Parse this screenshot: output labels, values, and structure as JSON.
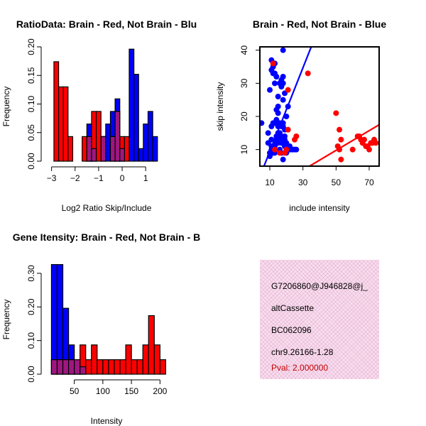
{
  "chart_data": [
    {
      "type": "bar",
      "title": "RatioData: Brain - Red, Not Brain - Blu",
      "xlabel": "Log2 Ratio Skip/Include",
      "ylabel": "Frequency",
      "xlim": [
        -3.2,
        1.9
      ],
      "ylim": [
        0,
        0.2
      ],
      "x_ticks": [
        -3,
        -2,
        -1,
        0,
        1
      ],
      "x_tick_labels": [
        "−3",
        "−2",
        "−1",
        "0",
        "1"
      ],
      "y_ticks": [
        0.0,
        0.05,
        0.1,
        0.15,
        0.2
      ],
      "y_tick_labels": [
        "0.00",
        "0.05",
        "0.10",
        "0.15",
        "0.20"
      ],
      "bin_width": 0.2,
      "series": [
        {
          "name": "Brain",
          "color": "#ff0000",
          "bins": [
            {
              "x0": -2.9,
              "value": 0.174
            },
            {
              "x0": -2.7,
              "value": 0.13
            },
            {
              "x0": -2.5,
              "value": 0.13
            },
            {
              "x0": -2.3,
              "value": 0.043
            },
            {
              "x0": -1.7,
              "value": 0.043
            },
            {
              "x0": -1.5,
              "value": 0.043
            },
            {
              "x0": -1.3,
              "value": 0.087
            },
            {
              "x0": -1.1,
              "value": 0.087
            },
            {
              "x0": -0.9,
              "value": 0.043
            },
            {
              "x0": -0.5,
              "value": 0.043
            },
            {
              "x0": -0.3,
              "value": 0.087
            },
            {
              "x0": -0.1,
              "value": 0.043
            },
            {
              "x0": 0.1,
              "value": 0.043
            }
          ]
        },
        {
          "name": "Not Brain",
          "color": "#0000ff",
          "bins": [
            {
              "x0": -1.5,
              "value": 0.065
            },
            {
              "x0": -1.3,
              "value": 0.022
            },
            {
              "x0": -0.9,
              "value": 0.043
            },
            {
              "x0": -0.7,
              "value": 0.065
            },
            {
              "x0": -0.5,
              "value": 0.087
            },
            {
              "x0": -0.3,
              "value": 0.109
            },
            {
              "x0": -0.1,
              "value": 0.022
            },
            {
              "x0": 0.3,
              "value": 0.196
            },
            {
              "x0": 0.5,
              "value": 0.152
            },
            {
              "x0": 0.7,
              "value": 0.022
            },
            {
              "x0": 0.9,
              "value": 0.065
            },
            {
              "x0": 1.1,
              "value": 0.087
            },
            {
              "x0": 1.3,
              "value": 0.043
            }
          ]
        }
      ]
    },
    {
      "type": "scatter",
      "title": "Brain - Red, Not Brain - Blue",
      "xlabel": "include intensity",
      "ylabel": "skip intensity",
      "xlim": [
        4,
        76
      ],
      "ylim": [
        5,
        41
      ],
      "x_ticks": [
        10,
        30,
        50,
        70
      ],
      "y_ticks": [
        10,
        20,
        30,
        40
      ],
      "series": [
        {
          "name": "Not Brain",
          "color": "#0000ff",
          "points": [
            [
              5,
              18
            ],
            [
              9,
              15
            ],
            [
              9,
              12
            ],
            [
              10,
              8
            ],
            [
              10,
              9
            ],
            [
              11,
              13
            ],
            [
              11,
              11
            ],
            [
              12,
              9
            ],
            [
              12,
              10
            ],
            [
              13,
              9
            ],
            [
              13,
              11
            ],
            [
              11,
              10
            ],
            [
              14,
              12
            ],
            [
              14,
              14
            ],
            [
              15,
              14
            ],
            [
              15,
              15
            ],
            [
              16,
              14
            ],
            [
              16,
              15
            ],
            [
              17,
              14
            ],
            [
              17,
              12
            ],
            [
              15,
              12
            ],
            [
              16,
              13
            ],
            [
              14,
              13
            ],
            [
              11,
              17
            ],
            [
              12,
              18
            ],
            [
              13,
              18
            ],
            [
              14,
              19
            ],
            [
              15,
              17
            ],
            [
              16,
              18
            ],
            [
              17,
              17
            ],
            [
              18,
              17
            ],
            [
              19,
              14
            ],
            [
              18,
              18
            ],
            [
              19,
              16
            ],
            [
              20,
              20
            ],
            [
              15,
              21
            ],
            [
              15,
              23
            ],
            [
              14,
              22
            ],
            [
              15,
              26
            ],
            [
              16,
              30
            ],
            [
              17,
              31
            ],
            [
              18,
              32
            ],
            [
              19,
              27
            ],
            [
              18,
              25
            ],
            [
              21,
              23
            ],
            [
              18,
              30
            ],
            [
              17,
              29
            ],
            [
              10,
              28
            ],
            [
              12,
              33
            ],
            [
              11,
              34
            ],
            [
              12,
              35
            ],
            [
              13,
              33
            ],
            [
              14,
              32
            ],
            [
              13,
              36
            ],
            [
              11,
              37
            ],
            [
              18,
              40
            ],
            [
              22,
              10
            ],
            [
              23,
              10
            ],
            [
              24,
              10
            ],
            [
              25,
              10
            ],
            [
              26,
              10
            ],
            [
              20,
              9
            ],
            [
              21,
              10
            ],
            [
              19,
              11
            ],
            [
              20,
              12
            ],
            [
              17,
              9
            ],
            [
              18,
              7
            ],
            [
              16,
              10
            ],
            [
              22,
              11
            ],
            [
              19,
              13
            ],
            [
              13,
              30
            ]
          ]
        },
        {
          "name": "Brain",
          "color": "#ff0000",
          "points": [
            [
              12,
              36
            ],
            [
              19,
              9
            ],
            [
              20,
              10
            ],
            [
              21,
              28
            ],
            [
              21,
              16
            ],
            [
              25,
              13
            ],
            [
              26,
              14
            ],
            [
              33,
              33
            ],
            [
              50,
              21
            ],
            [
              51,
              11
            ],
            [
              52,
              16
            ],
            [
              53,
              13
            ],
            [
              52,
              10
            ],
            [
              53,
              7
            ],
            [
              60,
              10
            ],
            [
              63,
              14
            ],
            [
              64,
              14
            ],
            [
              65,
              13
            ],
            [
              66,
              12
            ],
            [
              67,
              13
            ],
            [
              68,
              11
            ],
            [
              69,
              11
            ],
            [
              70,
              10
            ],
            [
              71,
              12
            ],
            [
              72,
              12
            ],
            [
              73,
              13
            ],
            [
              74,
              12
            ],
            [
              13,
              10
            ],
            [
              16,
              9
            ]
          ]
        }
      ],
      "regression_lines": [
        {
          "name": "Not Brain fit",
          "color": "#0000ff",
          "from": [
            6.5,
            5
          ],
          "to": [
            35,
            41
          ]
        },
        {
          "name": "Brain fit",
          "color": "#ff0000",
          "from": [
            34,
            5
          ],
          "to": [
            76,
            17.5
          ]
        }
      ]
    },
    {
      "type": "bar",
      "title": "Gene Itensity: Brain - Red, Not Brain - B",
      "xlabel": "Intensity",
      "ylabel": "Frequency",
      "xlim": [
        2,
        212
      ],
      "ylim": [
        0,
        0.34
      ],
      "x_ticks": [
        50,
        100,
        150,
        200
      ],
      "y_ticks": [
        0.0,
        0.1,
        0.2,
        0.3
      ],
      "y_tick_labels": [
        "0.00",
        "0.10",
        "0.20",
        "0.30"
      ],
      "bin_width": 10,
      "series": [
        {
          "name": "Brain",
          "color": "#ff0000",
          "bins": [
            {
              "x0": 10,
              "value": 0.043
            },
            {
              "x0": 20,
              "value": 0.043
            },
            {
              "x0": 30,
              "value": 0.043
            },
            {
              "x0": 40,
              "value": 0.043
            },
            {
              "x0": 50,
              "value": 0.043
            },
            {
              "x0": 60,
              "value": 0.087
            },
            {
              "x0": 70,
              "value": 0.043
            },
            {
              "x0": 80,
              "value": 0.087
            },
            {
              "x0": 90,
              "value": 0.043
            },
            {
              "x0": 100,
              "value": 0.043
            },
            {
              "x0": 110,
              "value": 0.043
            },
            {
              "x0": 120,
              "value": 0.043
            },
            {
              "x0": 130,
              "value": 0.043
            },
            {
              "x0": 140,
              "value": 0.087
            },
            {
              "x0": 150,
              "value": 0.043
            },
            {
              "x0": 160,
              "value": 0.043
            },
            {
              "x0": 170,
              "value": 0.087
            },
            {
              "x0": 180,
              "value": 0.174
            },
            {
              "x0": 190,
              "value": 0.087
            },
            {
              "x0": 200,
              "value": 0.043
            }
          ]
        },
        {
          "name": "Not Brain",
          "color": "#0000ff",
          "bins": [
            {
              "x0": 10,
              "value": 0.326
            },
            {
              "x0": 20,
              "value": 0.326
            },
            {
              "x0": 30,
              "value": 0.196
            },
            {
              "x0": 40,
              "value": 0.087
            },
            {
              "x0": 50,
              "value": 0.043
            },
            {
              "x0": 60,
              "value": 0.022
            }
          ]
        }
      ]
    }
  ],
  "info_panel": {
    "background_color": "#f7dfee",
    "lines": [
      "G7206860@J946828@j_",
      "altCassette",
      "BC062096",
      "chr9.26166-1.28"
    ],
    "pval": "Pval: 2.000000",
    "pval_color": "#c00000"
  }
}
